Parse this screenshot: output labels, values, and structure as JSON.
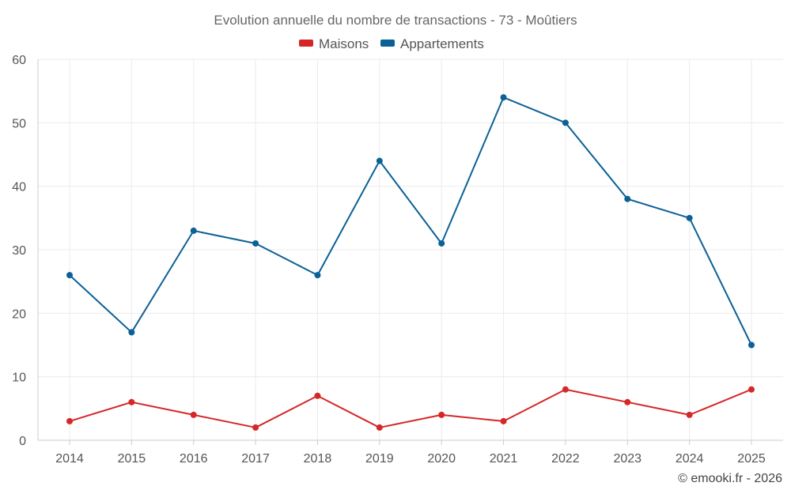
{
  "chart_data": {
    "type": "line",
    "title": "Evolution annuelle du nombre de transactions - 73 - Moûtiers",
    "categories": [
      "2014",
      "2015",
      "2016",
      "2017",
      "2018",
      "2019",
      "2020",
      "2021",
      "2022",
      "2023",
      "2024",
      "2025"
    ],
    "series": [
      {
        "name": "Maisons",
        "color": "#d62728",
        "values": [
          3,
          6,
          4,
          2,
          7,
          2,
          4,
          3,
          8,
          6,
          4,
          8
        ]
      },
      {
        "name": "Appartements",
        "color": "#0b6196",
        "values": [
          26,
          17,
          33,
          31,
          26,
          44,
          31,
          54,
          50,
          38,
          35,
          15
        ]
      }
    ],
    "yticks": [
      "0",
      "10",
      "20",
      "30",
      "40",
      "50",
      "60"
    ],
    "ylim": [
      0,
      60
    ],
    "xlabel": "",
    "ylabel": "",
    "grid": true,
    "legend": "top-center"
  },
  "credit": "© emooki.fr - 2026"
}
